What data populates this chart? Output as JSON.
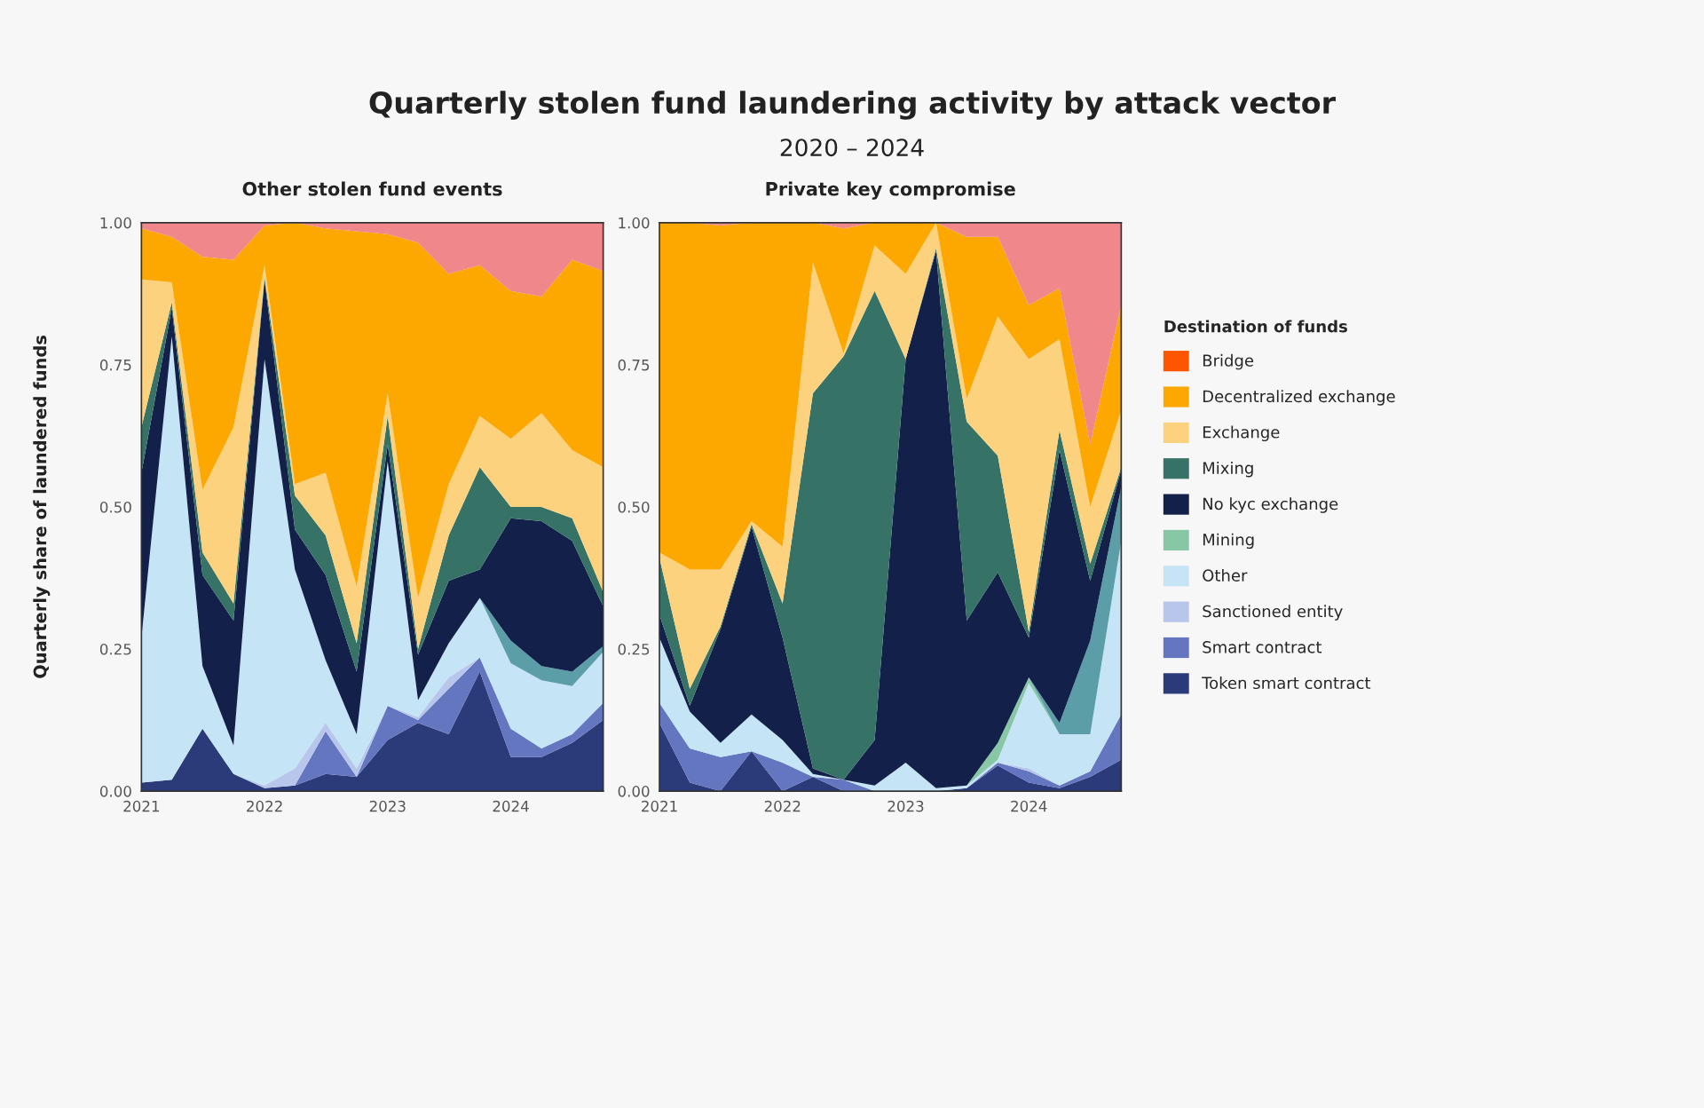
{
  "chart_data": [
    {
      "type": "area",
      "stacked": true,
      "title": "Other stolen fund events",
      "ylabel": "Quarterly share of laundered funds",
      "annotations": [
        "Quarterly stolen fund laundering activity by attack vector",
        "2020 – 2024"
      ],
      "x": [
        "2021-01",
        "2021-04",
        "2021-07",
        "2021-10",
        "2022-01",
        "2022-04",
        "2022-07",
        "2022-10",
        "2023-01",
        "2023-04",
        "2023-07",
        "2023-10",
        "2024-01",
        "2024-04",
        "2024-07",
        "2024-10"
      ],
      "xlim": [
        "2021-01",
        "2024-10"
      ],
      "xticks": [
        {
          "value": "2021",
          "label": "2021"
        },
        {
          "value": "2022",
          "label": "2022"
        },
        {
          "value": "2023",
          "label": "2023"
        },
        {
          "value": "2024",
          "label": "2024"
        }
      ],
      "ylim": [
        0,
        1
      ],
      "yticks": [
        {
          "value": 0,
          "label": "0.00"
        },
        {
          "value": 0.25,
          "label": "0.25"
        },
        {
          "value": 0.5,
          "label": "0.50"
        },
        {
          "value": 0.75,
          "label": "0.75"
        },
        {
          "value": 1,
          "label": "1.00"
        }
      ],
      "grid": false,
      "legend": "right",
      "series": [
        {
          "name": "Token smart contract",
          "color": "#2b3a78",
          "values": [
            0.015,
            0.02,
            0.11,
            0.03,
            0.005,
            0.01,
            0.03,
            0.025,
            0.09,
            0.12,
            0.1,
            0.21,
            0.06,
            0.06,
            0.085,
            0.125
          ]
        },
        {
          "name": "Smart contract",
          "color": "#6476c0",
          "values": [
            null,
            null,
            null,
            null,
            null,
            0,
            0.075,
            0,
            0.06,
            0.005,
            0.08,
            0.025,
            0.05,
            0.015,
            0.015,
            0.03
          ]
        },
        {
          "name": "Sanctioned entity",
          "color": "#b9c6ec",
          "values": [
            null,
            null,
            null,
            0,
            0.005,
            0.03,
            0.015,
            0.015,
            0,
            0.005,
            0.02,
            0,
            null,
            null,
            null,
            null
          ]
        },
        {
          "name": "Other",
          "color": "#c5e4f5",
          "values": [
            0.255,
            0.78,
            0.11,
            0.05,
            0.75,
            0.35,
            0.11,
            0.06,
            0.43,
            0.03,
            0.06,
            0.105,
            0.115,
            0.12,
            0.085,
            0.09
          ]
        },
        {
          "color": "#5b9ea8",
          "values": [
            null,
            null,
            null,
            null,
            null,
            null,
            null,
            null,
            null,
            null,
            null,
            0,
            0.04,
            0.025,
            0.025,
            0.01
          ]
        },
        {
          "name": "No kyc exchange",
          "color": "#13214a",
          "values": [
            0.29,
            0.05,
            0.16,
            0.22,
            0.14,
            0.07,
            0.15,
            0.11,
            0.03,
            0.08,
            0.11,
            0.05,
            0.215,
            0.255,
            0.23,
            0.07
          ]
        },
        {
          "name": "Mixing",
          "color": "#367366",
          "values": [
            0.08,
            0.01,
            0.04,
            0.03,
            0.005,
            0.06,
            0.07,
            0.05,
            0.05,
            0.01,
            0.08,
            0.18,
            0.02,
            0.025,
            0.04,
            0.025
          ]
        },
        {
          "name": "Exchange",
          "color": "#fdd27f",
          "values": [
            0.26,
            0.035,
            0.11,
            0.31,
            0.02,
            0.02,
            0.11,
            0.1,
            0.04,
            0.09,
            0.09,
            0.09,
            0.12,
            0.165,
            0.12,
            0.22
          ]
        },
        {
          "name": "Decentralized exchange",
          "color": "#fca800",
          "values": [
            0.09,
            0.08,
            0.41,
            0.295,
            0.07,
            0.46,
            0.43,
            0.625,
            0.28,
            0.625,
            0.37,
            0.265,
            0.26,
            0.205,
            0.335,
            0.345
          ]
        },
        {
          "color": "#f0878a",
          "values": [
            0.01,
            0.025,
            0.06,
            0.065,
            0.005,
            0,
            0.01,
            0.015,
            0.02,
            0.035,
            0.09,
            0.075,
            0.12,
            0.13,
            0.065,
            0.085
          ]
        }
      ]
    },
    {
      "type": "area",
      "stacked": true,
      "title": "Private key compromise",
      "x": [
        "2021-01",
        "2021-04",
        "2021-07",
        "2021-10",
        "2022-01",
        "2022-04",
        "2022-07",
        "2022-10",
        "2023-01",
        "2023-04",
        "2023-07",
        "2023-10",
        "2024-01",
        "2024-04",
        "2024-07",
        "2024-10"
      ],
      "xlim": [
        "2021-01",
        "2024-10"
      ],
      "xticks": [
        {
          "value": "2021",
          "label": "2021"
        },
        {
          "value": "2022",
          "label": "2022"
        },
        {
          "value": "2023",
          "label": "2023"
        },
        {
          "value": "2024",
          "label": "2024"
        }
      ],
      "ylim": [
        0,
        1
      ],
      "yticks": [
        {
          "value": 0,
          "label": "0.00"
        },
        {
          "value": 0.25,
          "label": "0.25"
        },
        {
          "value": 0.5,
          "label": "0.50"
        },
        {
          "value": 0.75,
          "label": "0.75"
        },
        {
          "value": 1,
          "label": "1.00"
        }
      ],
      "grid": false,
      "legend": "right",
      "legend_title": "Destination of funds",
      "series": [
        {
          "name": "Token smart contract",
          "color": "#2b3a78",
          "values": [
            0.12,
            0.015,
            0,
            0.07,
            0,
            0.025,
            0,
            0,
            0,
            0,
            0.005,
            0.045,
            0.015,
            0.005,
            0.025,
            0.055
          ]
        },
        {
          "name": "Smart contract",
          "color": "#6476c0",
          "values": [
            0.035,
            0.06,
            0.06,
            0,
            0.05,
            0,
            0.02,
            0,
            0,
            0,
            0,
            0.005,
            0.02,
            0.005,
            0.01,
            0.08
          ]
        },
        {
          "name": "Sanctioned entity",
          "color": "#b9c6ec",
          "values": [
            null,
            null,
            null,
            null,
            null,
            null,
            null,
            null,
            null,
            null,
            null,
            0,
            0.005,
            0,
            null,
            null
          ]
        },
        {
          "name": "Other",
          "color": "#c5e4f5",
          "values": [
            0.115,
            0.065,
            0.025,
            0.065,
            0.04,
            0.005,
            0,
            0.01,
            0.05,
            0.005,
            0.005,
            0.005,
            0.15,
            0.09,
            0.065,
            0.305
          ]
        },
        {
          "name": "Mining",
          "color": "#88c7a6",
          "values": [
            null,
            null,
            null,
            null,
            null,
            null,
            null,
            null,
            null,
            null,
            0,
            0.03,
            0.01,
            0,
            null,
            null
          ]
        },
        {
          "color": "#5b9ea8",
          "values": [
            null,
            null,
            null,
            null,
            null,
            null,
            null,
            null,
            null,
            null,
            null,
            null,
            0,
            0.02,
            0.165,
            0.095
          ]
        },
        {
          "name": "No kyc exchange",
          "color": "#13214a",
          "values": [
            0.04,
            0.01,
            0.2,
            0.33,
            0.18,
            0.01,
            0,
            0.08,
            0.71,
            0.945,
            0.29,
            0.3,
            0.07,
            0.48,
            0.105,
            0.03
          ]
        },
        {
          "name": "Mixing",
          "color": "#367366",
          "values": [
            0.1,
            0.03,
            0.005,
            0.005,
            0.06,
            0.66,
            0.745,
            0.79,
            0,
            0.005,
            0.35,
            0.205,
            0.01,
            0.035,
            0.03,
            0.005
          ]
        },
        {
          "name": "Exchange",
          "color": "#fdd27f",
          "values": [
            0.01,
            0.21,
            0.1,
            0.005,
            0.1,
            0.23,
            0.005,
            0.08,
            0.15,
            0.045,
            0.04,
            0.245,
            0.48,
            0.16,
            0.1,
            0.1
          ]
        },
        {
          "name": "Decentralized exchange",
          "color": "#fca800",
          "values": [
            0.58,
            0.61,
            0.605,
            0.525,
            0.57,
            0.07,
            0.22,
            0.04,
            0.09,
            0,
            0.285,
            0.14,
            0.095,
            0.09,
            0.11,
            0.185
          ]
        },
        {
          "name": "Bridge",
          "color": "#ff5500",
          "values": [
            null,
            null,
            null,
            null,
            null,
            null,
            null,
            null,
            null,
            null,
            null,
            null,
            null,
            null,
            null,
            null
          ]
        },
        {
          "color": "#f0878a",
          "values": [
            0,
            0,
            0.005,
            0,
            0,
            0,
            0.01,
            0,
            0,
            0,
            0.025,
            0.025,
            0.145,
            0.115,
            0.39,
            0.145
          ]
        }
      ]
    }
  ]
}
